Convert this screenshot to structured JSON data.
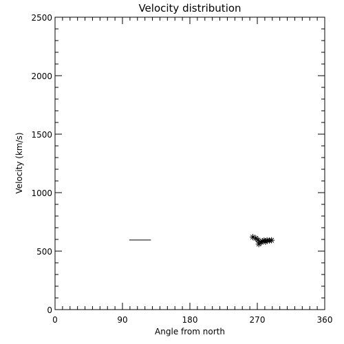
{
  "chart_data": {
    "type": "scatter",
    "title": "Velocity distribution",
    "xlabel": "Angle from north",
    "ylabel": "Velocity (km/s)",
    "xlim": [
      0,
      360
    ],
    "ylim": [
      0,
      2500
    ],
    "x_ticks": [
      0,
      90,
      180,
      270,
      360
    ],
    "y_ticks": [
      0,
      500,
      1000,
      1500,
      2000,
      2500
    ],
    "x_minor_step": 10,
    "y_minor_step": 100,
    "grid": false,
    "series": [
      {
        "marker": "asterisk",
        "points": [
          {
            "x": 264,
            "y": 620
          },
          {
            "x": 268,
            "y": 610
          },
          {
            "x": 271,
            "y": 595
          },
          {
            "x": 272,
            "y": 560
          },
          {
            "x": 275,
            "y": 575
          },
          {
            "x": 277,
            "y": 585
          },
          {
            "x": 279,
            "y": 590
          },
          {
            "x": 281,
            "y": 580
          },
          {
            "x": 283,
            "y": 592
          },
          {
            "x": 286,
            "y": 590
          },
          {
            "x": 289,
            "y": 593
          }
        ]
      },
      {
        "marker": "line",
        "points": [
          {
            "x": 99,
            "y": 595
          },
          {
            "x": 128,
            "y": 595
          }
        ]
      }
    ]
  }
}
